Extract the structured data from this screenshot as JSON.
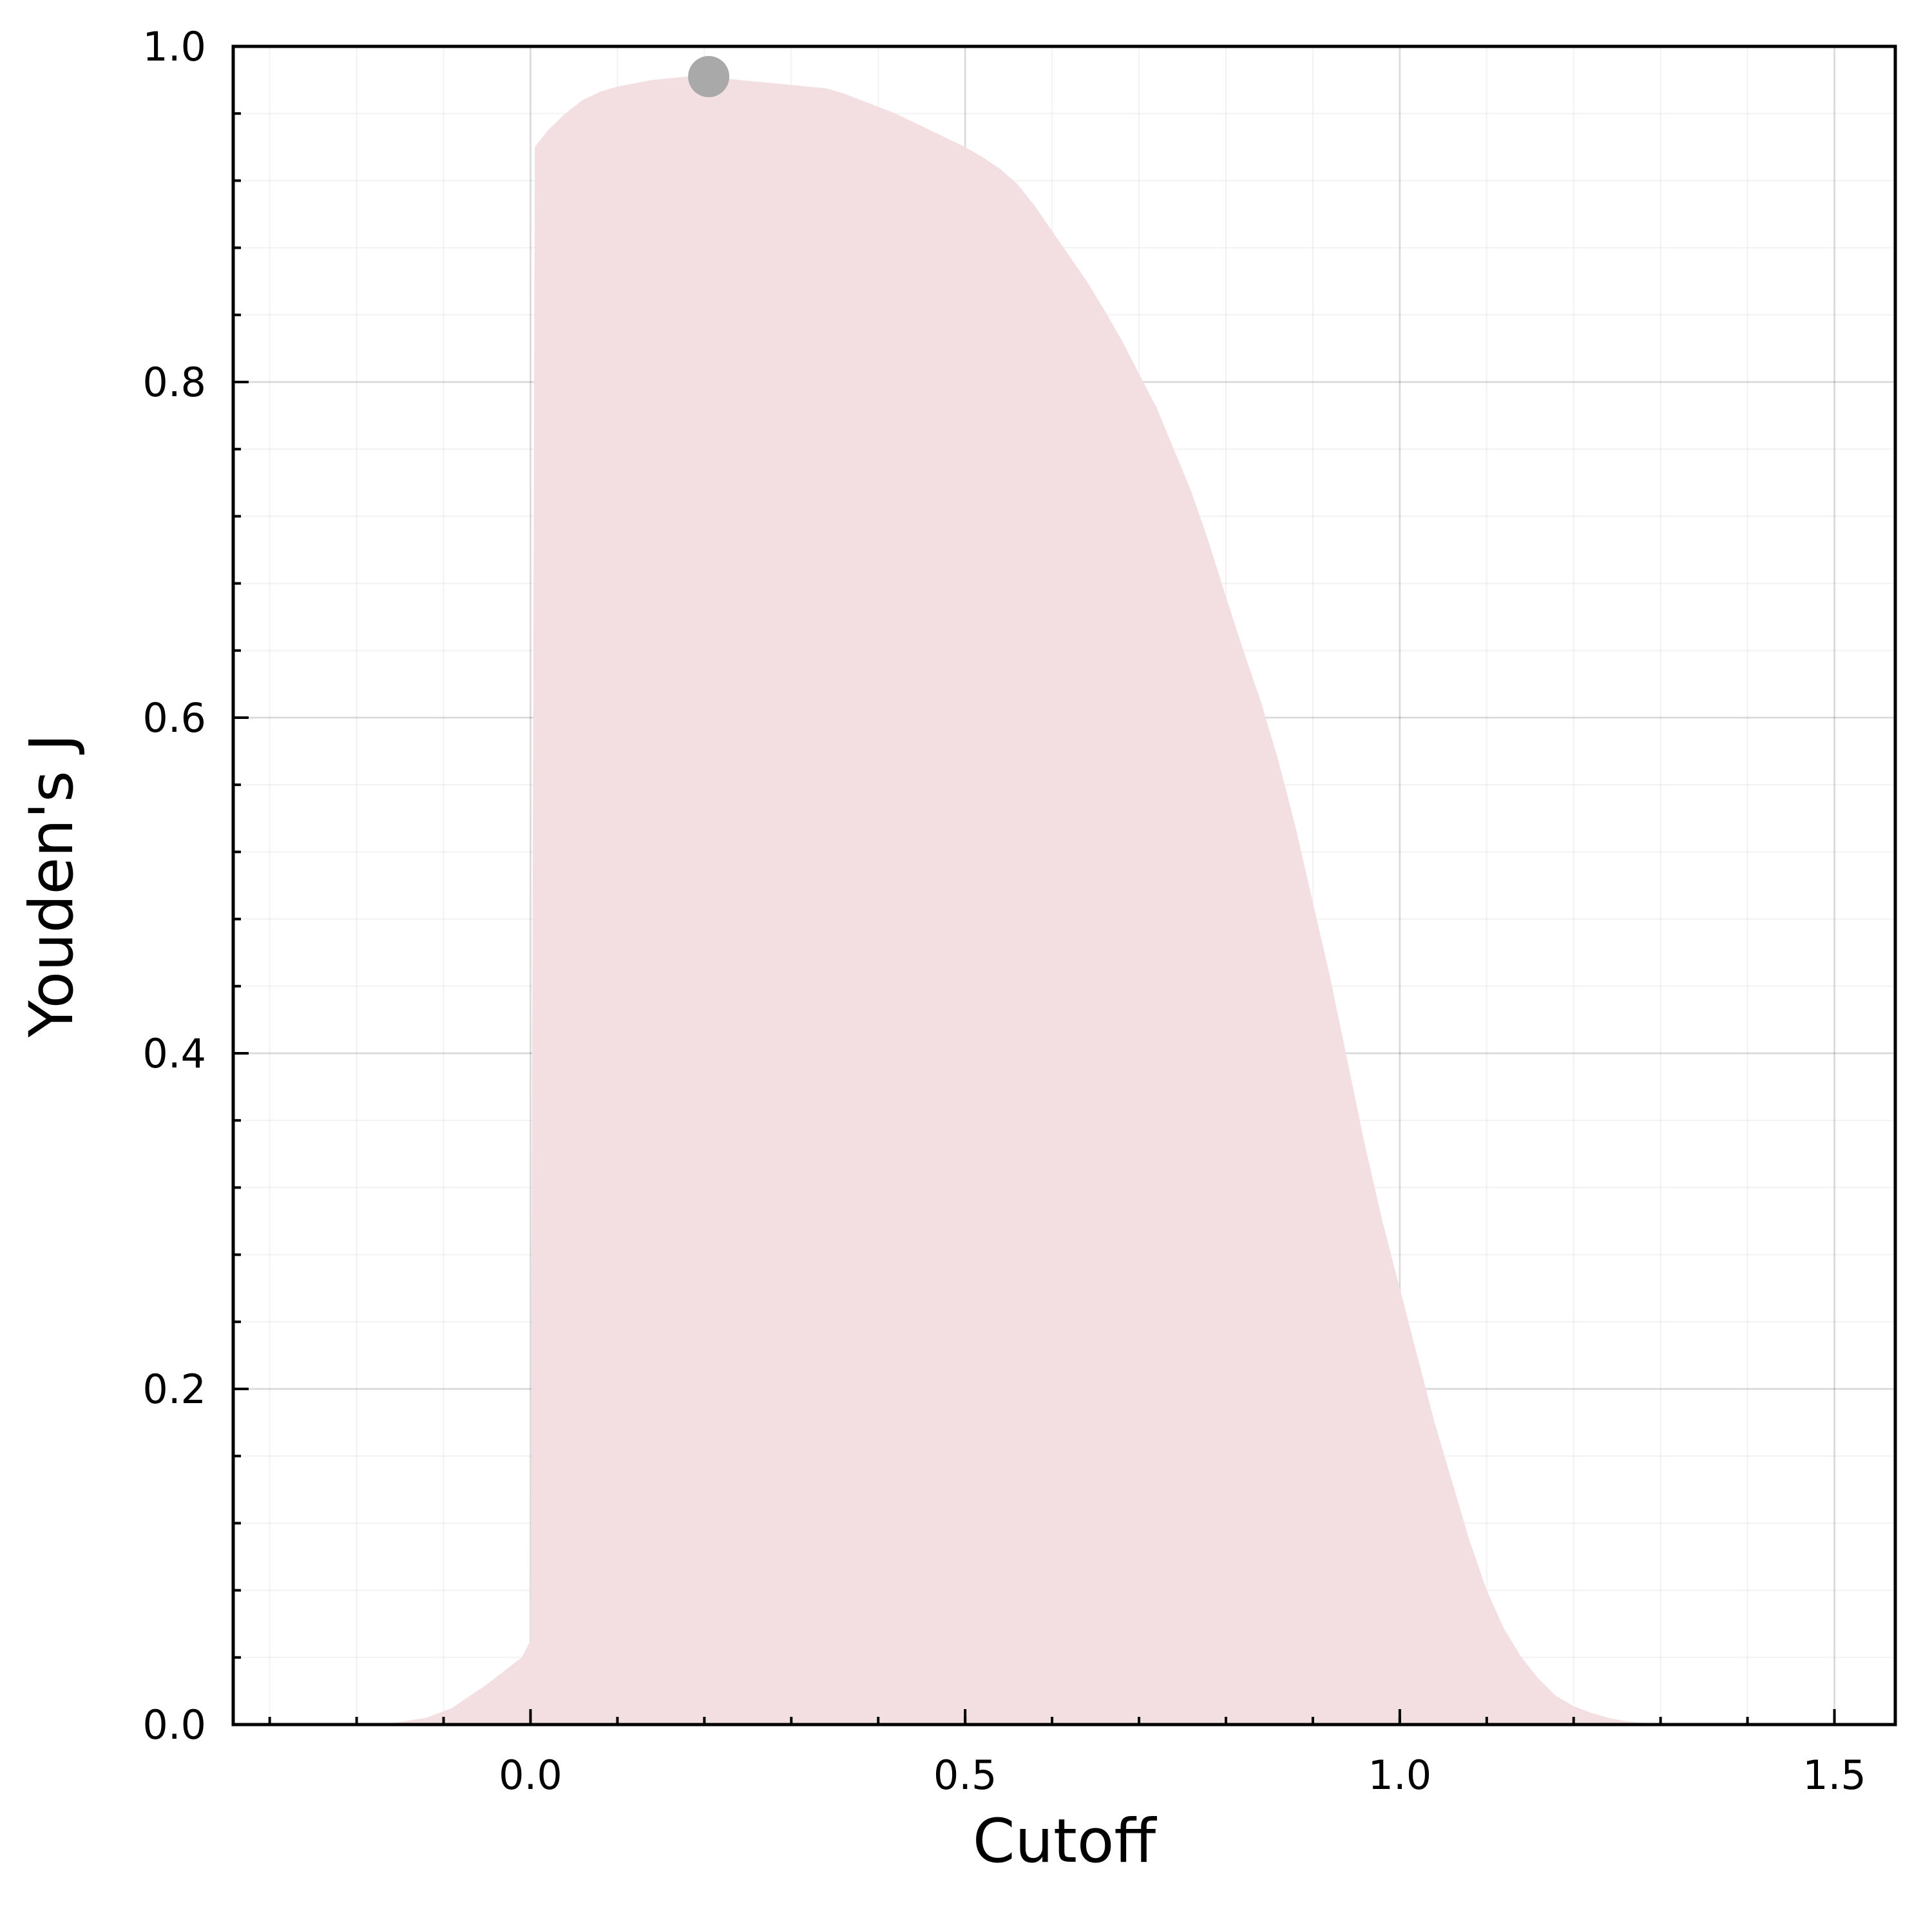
{
  "chart_data": {
    "type": "area",
    "title": "",
    "xlabel": "Cutoff",
    "ylabel": "Youden's J",
    "xlim": [
      -0.342,
      1.57
    ],
    "ylim": [
      0.0,
      1.0
    ],
    "x_ticks": [
      0.0,
      0.5,
      1.0,
      1.5
    ],
    "x_tick_labels": [
      "0.0",
      "0.5",
      "1.0",
      "1.5"
    ],
    "x_minor_step": 0.1,
    "y_ticks": [
      0.0,
      0.2,
      0.4,
      0.6,
      0.8,
      1.0
    ],
    "y_tick_labels": [
      "0.0",
      "0.2",
      "0.4",
      "0.6",
      "0.8",
      "1.0"
    ],
    "y_minor_step": 0.04,
    "grid": true,
    "legend": "none",
    "series": [
      {
        "color": "#f3dee2",
        "x": [
          -0.17,
          -0.12,
          -0.09,
          -0.07,
          -0.05,
          -0.03,
          -0.01,
          0.0,
          0.005,
          0.02,
          0.04,
          0.06,
          0.08,
          0.1,
          0.12,
          0.14,
          0.16,
          0.18,
          0.2,
          0.22,
          0.24,
          0.26,
          0.28,
          0.3,
          0.32,
          0.34,
          0.36,
          0.38,
          0.4,
          0.42,
          0.44,
          0.46,
          0.48,
          0.5,
          0.52,
          0.54,
          0.56,
          0.58,
          0.6,
          0.62,
          0.64,
          0.66,
          0.68,
          0.7,
          0.72,
          0.74,
          0.76,
          0.78,
          0.8,
          0.82,
          0.84,
          0.86,
          0.88,
          0.9,
          0.92,
          0.94,
          0.96,
          0.98,
          1.0,
          1.02,
          1.04,
          1.06,
          1.08,
          1.1,
          1.12,
          1.14,
          1.16,
          1.18,
          1.2,
          1.22,
          1.24,
          1.26,
          1.28,
          1.3,
          1.32,
          1.35
        ],
        "y": [
          0.0,
          0.004,
          0.01,
          0.017,
          0.024,
          0.032,
          0.04,
          0.05,
          0.94,
          0.95,
          0.96,
          0.968,
          0.973,
          0.976,
          0.978,
          0.98,
          0.981,
          0.982,
          0.982,
          0.981,
          0.98,
          0.979,
          0.978,
          0.977,
          0.976,
          0.975,
          0.972,
          0.968,
          0.964,
          0.96,
          0.955,
          0.95,
          0.945,
          0.94,
          0.934,
          0.927,
          0.918,
          0.905,
          0.89,
          0.875,
          0.86,
          0.843,
          0.825,
          0.805,
          0.785,
          0.76,
          0.735,
          0.705,
          0.672,
          0.64,
          0.61,
          0.575,
          0.535,
          0.49,
          0.445,
          0.395,
          0.345,
          0.3,
          0.26,
          0.22,
          0.18,
          0.145,
          0.11,
          0.08,
          0.057,
          0.04,
          0.027,
          0.017,
          0.011,
          0.007,
          0.004,
          0.002,
          0.001,
          0.0,
          0.0,
          0.0
        ]
      }
    ],
    "highlight_point": {
      "x": 0.205,
      "y": 0.982,
      "color": "#a9a9a9"
    }
  }
}
